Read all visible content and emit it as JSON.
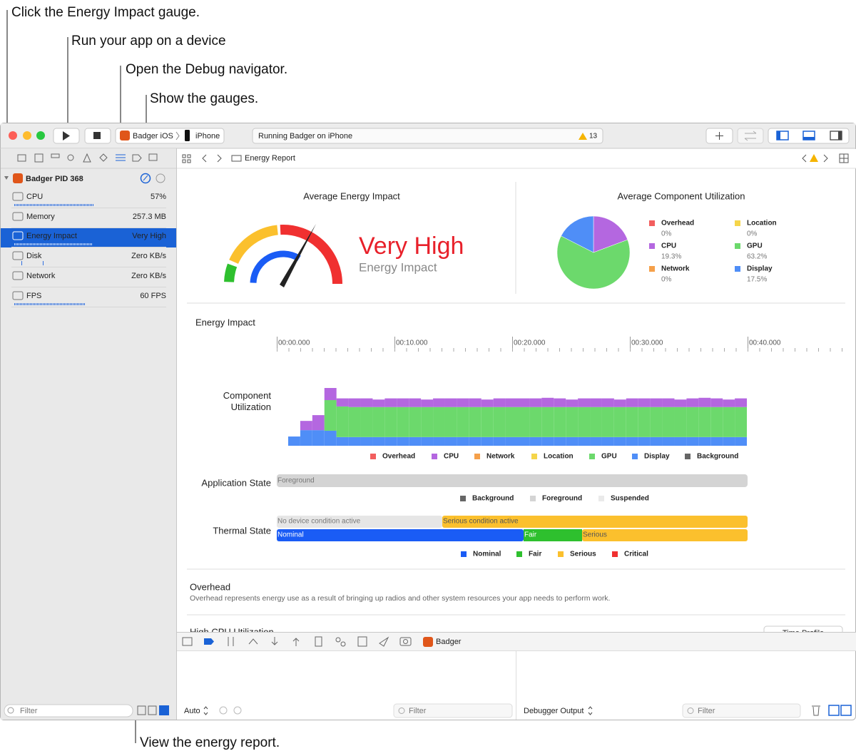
{
  "callouts": {
    "gauge": "Click the Energy Impact gauge.",
    "run": "Run your app on a device",
    "debug": "Open the Debug navigator.",
    "gauges": "Show the gauges.",
    "report": "View the energy report."
  },
  "toolbar": {
    "scheme": "Badger iOS",
    "device": "iPhone",
    "status": "Running Badger on iPhone",
    "warnings": "13"
  },
  "navigator": {
    "process": "Badger PID 368",
    "gauges": [
      {
        "name": "CPU",
        "value": "57%"
      },
      {
        "name": "Memory",
        "value": "257.3 MB"
      },
      {
        "name": "Energy Impact",
        "value": "Very High"
      },
      {
        "name": "Disk",
        "value": "Zero KB/s"
      },
      {
        "name": "Network",
        "value": "Zero KB/s"
      },
      {
        "name": "FPS",
        "value": "60 FPS"
      }
    ],
    "filter": "Filter"
  },
  "editor": {
    "breadcrumb": "Energy Report"
  },
  "report": {
    "energy": {
      "title": "Average Energy Impact",
      "level": "Very High",
      "label": "Energy Impact"
    },
    "components": {
      "type": "pie",
      "title": "Average Component Utilization",
      "categories": [
        "Overhead",
        "Location",
        "CPU",
        "GPU",
        "Network",
        "Display"
      ],
      "values": [
        0,
        0,
        19.3,
        63.2,
        0,
        17.5
      ],
      "value_labels": [
        "0%",
        "0%",
        "19.3%",
        "63.2%",
        "0%",
        "17.5%"
      ],
      "colors": [
        "#f25e5e",
        "#f5d54a",
        "#b467e0",
        "#6cd96c",
        "#f5a04a",
        "#4f8ef7"
      ]
    },
    "timeline": {
      "title": "Energy Impact",
      "ticks": [
        "00:00.000",
        "00:10.000",
        "00:20.000",
        "00:30.000",
        "00:40.000"
      ]
    },
    "utilization": {
      "type": "bar",
      "label": "Component Utilization",
      "series": [
        {
          "name": "Overhead",
          "color": "#f25e5e"
        },
        {
          "name": "CPU",
          "color": "#b467e0",
          "values": [
            0,
            16,
            26,
            21,
            14,
            15,
            15,
            13,
            15,
            15,
            15,
            13,
            15,
            15,
            15,
            15,
            13,
            15,
            15,
            15,
            15,
            16,
            15,
            13,
            15,
            15,
            15,
            13,
            15,
            15,
            15,
            15,
            13,
            15,
            16,
            15,
            13,
            15
          ]
        },
        {
          "name": "Network",
          "color": "#f5a04a"
        },
        {
          "name": "Location",
          "color": "#f5d54a"
        },
        {
          "name": "GPU",
          "color": "#6cd96c",
          "values": [
            0,
            0,
            0,
            53,
            53,
            52,
            52,
            52,
            52,
            52,
            52,
            52,
            52,
            52,
            52,
            52,
            52,
            52,
            52,
            52,
            52,
            52,
            52,
            52,
            52,
            52,
            52,
            52,
            52,
            52,
            52,
            52,
            52,
            52,
            52,
            52,
            52,
            52
          ]
        },
        {
          "name": "Display",
          "color": "#4f8ef7",
          "values": [
            16,
            27,
            27,
            26,
            15,
            15,
            15,
            15,
            15,
            15,
            15,
            15,
            15,
            15,
            15,
            15,
            15,
            15,
            15,
            15,
            15,
            15,
            15,
            15,
            15,
            15,
            15,
            15,
            15,
            15,
            15,
            15,
            15,
            15,
            15,
            15,
            15,
            15
          ]
        },
        {
          "name": "Background",
          "color": "#666666"
        }
      ]
    },
    "app_state": {
      "label": "Application State",
      "bar": "Foreground",
      "legend": [
        {
          "name": "Background",
          "color": "#666666"
        },
        {
          "name": "Foreground",
          "color": "#d4d4d4"
        },
        {
          "name": "Suspended",
          "color": "#eaeaea"
        }
      ]
    },
    "thermal": {
      "label": "Thermal State",
      "conditions": [
        "No device condition active",
        "Serious condition active"
      ],
      "states": [
        "Nominal",
        "Fair",
        "Serious"
      ],
      "legend": [
        {
          "name": "Nominal",
          "color": "#1a5cf5"
        },
        {
          "name": "Fair",
          "color": "#2ec02e"
        },
        {
          "name": "Serious",
          "color": "#fbc02d"
        },
        {
          "name": "Critical",
          "color": "#f03030"
        }
      ]
    },
    "overhead": {
      "title": "Overhead",
      "text": "Overhead represents energy use as a result of bringing up radios and other system resources your app needs to perform work."
    },
    "next_section": {
      "title": "High CPU Utilization",
      "button": "Time Profile"
    }
  },
  "debug": {
    "target": "Badger",
    "scope": "Auto",
    "filter_left": "Filter",
    "output": "Debugger Output",
    "filter_right": "Filter"
  }
}
